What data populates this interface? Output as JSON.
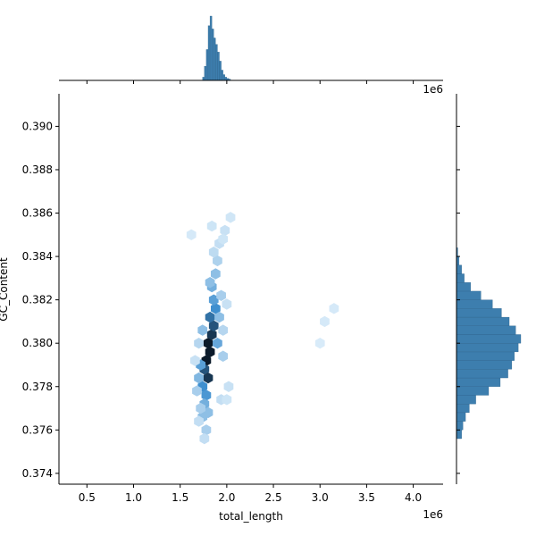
{
  "chart_data": {
    "type": "hexbin-jointplot",
    "xlabel": "total_length",
    "ylabel": "GC_Content",
    "x_offset_label": "1e6",
    "top_offset_label": "1e6",
    "xlim": [
      0.2,
      4.32
    ],
    "ylim": [
      0.3735,
      0.3915
    ],
    "x_unit_scale": 1000000,
    "x_ticks": [
      0.5,
      1.0,
      1.5,
      2.0,
      2.5,
      3.0,
      3.5,
      4.0
    ],
    "x_tick_labels": [
      "0.5",
      "1.0",
      "1.5",
      "2.0",
      "2.5",
      "3.0",
      "3.5",
      "4.0"
    ],
    "y_ticks": [
      0.374,
      0.376,
      0.378,
      0.38,
      0.382,
      0.384,
      0.386,
      0.388,
      0.39
    ],
    "y_tick_labels": [
      "0.374",
      "0.376",
      "0.378",
      "0.380",
      "0.382",
      "0.384",
      "0.386",
      "0.388",
      "0.390"
    ],
    "grid": false,
    "legend": "none",
    "hexbin": {
      "cells": [
        [
          1.8,
          0.38,
          1.0
        ],
        [
          1.82,
          0.3796,
          1.0
        ],
        [
          1.78,
          0.3792,
          1.0
        ],
        [
          1.84,
          0.3804,
          0.9
        ],
        [
          1.76,
          0.3788,
          0.8
        ],
        [
          1.86,
          0.3808,
          0.8
        ],
        [
          1.8,
          0.3784,
          0.9
        ],
        [
          1.82,
          0.3812,
          0.7
        ],
        [
          1.74,
          0.378,
          0.6
        ],
        [
          1.88,
          0.3816,
          0.6
        ],
        [
          1.78,
          0.3776,
          0.55
        ],
        [
          1.86,
          0.382,
          0.5
        ],
        [
          1.72,
          0.379,
          0.5
        ],
        [
          1.9,
          0.38,
          0.45
        ],
        [
          1.76,
          0.3772,
          0.4
        ],
        [
          1.84,
          0.3826,
          0.4
        ],
        [
          1.7,
          0.3784,
          0.35
        ],
        [
          1.92,
          0.3812,
          0.3
        ],
        [
          1.74,
          0.3766,
          0.3
        ],
        [
          1.88,
          0.3832,
          0.3
        ],
        [
          1.8,
          0.3768,
          0.3
        ],
        [
          1.82,
          0.3828,
          0.3
        ],
        [
          1.68,
          0.3778,
          0.2
        ],
        [
          1.94,
          0.3822,
          0.2
        ],
        [
          1.78,
          0.376,
          0.2
        ],
        [
          1.9,
          0.3838,
          0.18
        ],
        [
          1.72,
          0.377,
          0.2
        ],
        [
          1.96,
          0.3806,
          0.15
        ],
        [
          1.86,
          0.3842,
          0.12
        ],
        [
          1.92,
          0.3846,
          0.1
        ],
        [
          1.76,
          0.3756,
          0.1
        ],
        [
          1.98,
          0.3852,
          0.08
        ],
        [
          2.0,
          0.3818,
          0.08
        ],
        [
          1.94,
          0.3774,
          0.1
        ],
        [
          2.02,
          0.378,
          0.08
        ],
        [
          1.7,
          0.3764,
          0.1
        ],
        [
          1.84,
          0.3854,
          0.06
        ],
        [
          2.0,
          0.3774,
          0.06
        ],
        [
          1.96,
          0.3848,
          0.06
        ],
        [
          1.74,
          0.3806,
          0.3
        ],
        [
          1.96,
          0.3794,
          0.2
        ],
        [
          1.7,
          0.38,
          0.15
        ],
        [
          1.66,
          0.3792,
          0.08
        ],
        [
          2.04,
          0.3858,
          0.05
        ],
        [
          3.05,
          0.381,
          0.03
        ],
        [
          3.15,
          0.3816,
          0.03
        ],
        [
          3.0,
          0.38,
          0.02
        ],
        [
          1.62,
          0.385,
          0.03
        ]
      ]
    },
    "x_marginal_hist": {
      "bins": [
        1.74,
        1.76,
        1.78,
        1.8,
        1.82,
        1.84,
        1.86,
        1.88,
        1.9,
        1.92,
        1.94,
        1.96,
        1.98,
        2.0,
        2.02
      ],
      "counts": [
        5,
        22,
        48,
        85,
        100,
        80,
        66,
        56,
        44,
        30,
        16,
        9,
        5,
        3,
        2
      ]
    },
    "y_marginal_hist": {
      "bins": [
        0.3756,
        0.376,
        0.3764,
        0.3768,
        0.3772,
        0.3776,
        0.378,
        0.3784,
        0.3788,
        0.3792,
        0.3796,
        0.38,
        0.3804,
        0.3808,
        0.3812,
        0.3816,
        0.382,
        0.3824,
        0.3828,
        0.3832,
        0.3836,
        0.384
      ],
      "counts": [
        8,
        10,
        14,
        20,
        30,
        50,
        68,
        80,
        86,
        90,
        96,
        100,
        92,
        82,
        70,
        56,
        38,
        22,
        12,
        8,
        4,
        2
      ]
    },
    "colors": {
      "hex_cmap_light": "#ddeefa",
      "hex_cmap_mid": "#3f8fcf",
      "hex_cmap_dark": "#0b1a2a",
      "hist_fill": "#3d7eae",
      "hist_edge": "#2a5f87",
      "axis": "#000000"
    }
  }
}
